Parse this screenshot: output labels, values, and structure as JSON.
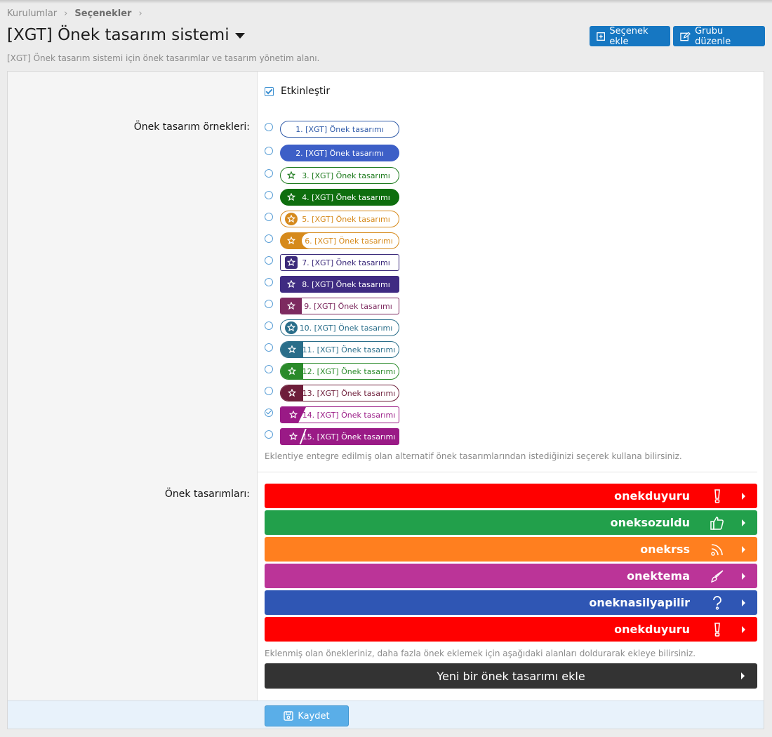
{
  "breadcrumb": {
    "items": [
      "Kurulumlar",
      "Seçenekler"
    ]
  },
  "page": {
    "title": "[XGT] Önek tasarım sistemi",
    "description": "[XGT] Önek tasarım sistemi için önek tasarımlar ve tasarım yönetim alanı."
  },
  "actions": {
    "add_option": "Seçenek ekle",
    "edit_group": "Grubu düzenle"
  },
  "form": {
    "enable_label": "Etkinleştir",
    "samples_label": "Önek tasarım örnekleri:",
    "samples": [
      {
        "label": "1. [XGT] Önek tasarımı",
        "color": "#2f5aa8",
        "style": "outline-round",
        "selected": false
      },
      {
        "label": "2. [XGT] Önek tasarımı",
        "color": "#3d5fc7",
        "style": "solid-round",
        "selected": false
      },
      {
        "label": "3. [XGT] Önek tasarımı",
        "color": "#1e7b1e",
        "style": "outline-round-icon",
        "selected": false
      },
      {
        "label": "4. [XGT] Önek tasarımı",
        "color": "#0e6e0e",
        "style": "solid-round-icon",
        "selected": false
      },
      {
        "label": "5. [XGT] Önek tasarımı",
        "color": "#d68a1c",
        "style": "outline-round-circle",
        "selected": false
      },
      {
        "label": "6. [XGT] Önek tasarımı",
        "color": "#d68a1c",
        "style": "round-half",
        "selected": false
      },
      {
        "label": "7. [XGT] Önek tasarımı",
        "color": "#3b2a7a",
        "style": "outline-square-box",
        "selected": false
      },
      {
        "label": "8. [XGT] Önek tasarımı",
        "color": "#3f2b82",
        "style": "solid-square",
        "selected": false
      },
      {
        "label": "9. [XGT] Önek tasarımı",
        "color": "#7d2a5f",
        "style": "square-half",
        "selected": false
      },
      {
        "label": "10. [XGT] Önek tasarımı",
        "color": "#2a6e8a",
        "style": "outline-round-circle",
        "selected": false
      },
      {
        "label": "11. [XGT] Önek tasarımı",
        "color": "#2a6e8a",
        "style": "round-half-light",
        "selected": false
      },
      {
        "label": "12. [XGT] Önek tasarımı",
        "color": "#2a8a2a",
        "style": "round-half-light",
        "selected": false
      },
      {
        "label": "13. [XGT] Önek tasarımı",
        "color": "#6e1e3a",
        "style": "round-half-light",
        "selected": false
      },
      {
        "label": "14. [XGT] Önek tasarımı",
        "color": "#9a1a86",
        "style": "slant-outline",
        "selected": true
      },
      {
        "label": "15. [XGT] Önek tasarımı",
        "color": "#9a1a86",
        "style": "slant-solid",
        "selected": false
      }
    ],
    "samples_hint": "Eklentiye entegre edilmiş olan alternatif önek tasarımlarından istediğinizi seçerek kullana bilirsiniz.",
    "designs_label": "Önek tasarımları:",
    "designs": [
      {
        "name": "onekduyuru",
        "color": "#ff0000",
        "icon": "exclamation-icon"
      },
      {
        "name": "oneksozuldu",
        "color": "#22a04b",
        "icon": "thumbs-up-icon"
      },
      {
        "name": "onekrss",
        "color": "#ff7f1f",
        "icon": "rss-icon"
      },
      {
        "name": "onektema",
        "color": "#bb3498",
        "icon": "brush-icon"
      },
      {
        "name": "oneknasilyapilir",
        "color": "#2f56b4",
        "icon": "question-icon"
      },
      {
        "name": "onekduyuru",
        "color": "#ff0000",
        "icon": "exclamation-icon"
      }
    ],
    "designs_hint": "Eklenmiş olan önekleriniz, daha fazla önek eklemek için aşağıdaki alanları doldurarak ekleye bilirsiniz.",
    "add_new_label": "Yeni bir önek tasarımı ekle",
    "save_label": "Kaydet"
  }
}
